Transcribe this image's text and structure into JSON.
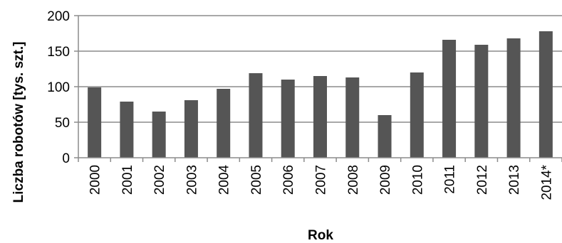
{
  "chart_data": {
    "type": "bar",
    "title": "",
    "xlabel": "Rok",
    "ylabel": "Liczba robotów [tys. szt.]",
    "categories": [
      "2000",
      "2001",
      "2002",
      "2003",
      "2004",
      "2005",
      "2006",
      "2007",
      "2008",
      "2009",
      "2010",
      "2011",
      "2012",
      "2013",
      "2014*"
    ],
    "values": [
      99,
      79,
      65,
      81,
      97,
      119,
      110,
      115,
      113,
      60,
      120,
      166,
      159,
      168,
      178
    ],
    "ylim": [
      0,
      200
    ],
    "yticks": [
      0,
      50,
      100,
      150,
      200
    ],
    "grid": true,
    "legend": "none",
    "bar_color": "#555555",
    "grid_color": "#8c8c8c"
  }
}
